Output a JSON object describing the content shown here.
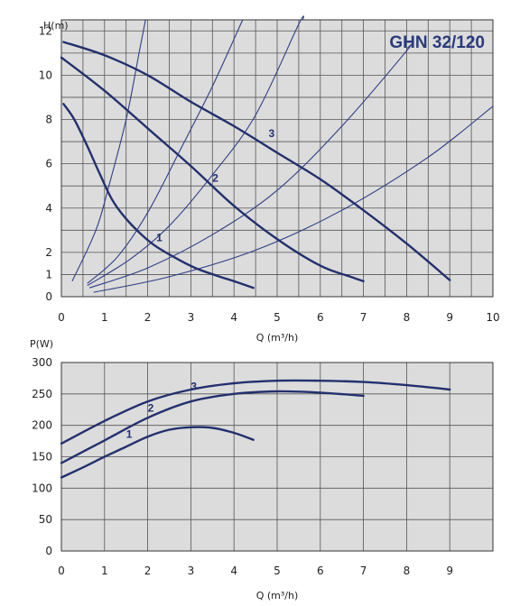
{
  "colors": {
    "plot_bg": "#dcdcdc",
    "grid": "#555555",
    "pump_curve": "#23306e",
    "system_curve": "#2f3d86",
    "title": "#2a3a7c"
  },
  "chart_data": [
    {
      "type": "line",
      "title": "GHN 32/120",
      "xlabel": "Q (m³/h)",
      "ylabel": "H(m)",
      "xlim": [
        0,
        10
      ],
      "ylim": [
        0,
        12.5
      ],
      "x_ticks": [
        "0",
        "1",
        "2",
        "3",
        "4",
        "5",
        "6",
        "7",
        "8",
        "9",
        "10"
      ],
      "y_ticks": [
        "0",
        "1",
        "2",
        "4",
        "6",
        "8",
        "10",
        "12"
      ],
      "grid": true,
      "series": [
        {
          "name": "1",
          "points": [
            [
              0.05,
              8.7
            ],
            [
              0.3,
              8.0
            ],
            [
              0.6,
              6.8
            ],
            [
              0.9,
              5.5
            ],
            [
              1.2,
              4.3
            ],
            [
              1.6,
              3.3
            ],
            [
              2.1,
              2.4
            ],
            [
              2.6,
              1.8
            ],
            [
              3.1,
              1.3
            ],
            [
              3.6,
              0.95
            ],
            [
              4.0,
              0.7
            ],
            [
              4.45,
              0.4
            ]
          ]
        },
        {
          "name": "2",
          "points": [
            [
              0.0,
              10.8
            ],
            [
              1.0,
              9.3
            ],
            [
              2.0,
              7.6
            ],
            [
              3.0,
              5.9
            ],
            [
              4.0,
              4.1
            ],
            [
              5.0,
              2.6
            ],
            [
              6.0,
              1.4
            ],
            [
              6.7,
              0.9
            ],
            [
              7.0,
              0.7
            ]
          ]
        },
        {
          "name": "3",
          "points": [
            [
              0.05,
              11.5
            ],
            [
              1.0,
              10.9
            ],
            [
              2.0,
              10.0
            ],
            [
              3.0,
              8.8
            ],
            [
              4.0,
              7.7
            ],
            [
              5.0,
              6.5
            ],
            [
              6.0,
              5.3
            ],
            [
              7.0,
              3.9
            ],
            [
              8.0,
              2.4
            ],
            [
              9.0,
              0.75
            ]
          ]
        }
      ],
      "system_curves": [
        [
          [
            0.25,
            0.7
          ],
          [
            0.8,
            3.0
          ],
          [
            1.1,
            5.0
          ],
          [
            1.5,
            8.0
          ],
          [
            1.8,
            11.0
          ],
          [
            1.95,
            12.5
          ]
        ],
        [
          [
            0.6,
            0.6
          ],
          [
            1.3,
            1.8
          ],
          [
            2.0,
            3.8
          ],
          [
            2.8,
            6.8
          ],
          [
            3.5,
            9.5
          ],
          [
            4.2,
            12.5
          ]
        ],
        [
          [
            0.6,
            0.5
          ],
          [
            1.6,
            1.7
          ],
          [
            2.5,
            3.2
          ],
          [
            3.5,
            5.5
          ],
          [
            4.5,
            8.2
          ],
          [
            5.5,
            12.3
          ],
          [
            5.6,
            12.5
          ]
        ],
        [
          [
            0.65,
            0.4
          ],
          [
            2.0,
            1.3
          ],
          [
            3.5,
            2.8
          ],
          [
            5.0,
            4.8
          ],
          [
            6.5,
            7.7
          ],
          [
            8.0,
            11.1
          ],
          [
            8.0,
            11.2
          ]
        ],
        [
          [
            0.75,
            0.2
          ],
          [
            2.5,
            0.9
          ],
          [
            4.5,
            2.1
          ],
          [
            6.5,
            3.9
          ],
          [
            8.5,
            6.3
          ],
          [
            10.0,
            8.6
          ]
        ]
      ]
    },
    {
      "type": "line",
      "xlabel": "Q (m³/h)",
      "ylabel": "P(W)",
      "xlim": [
        0,
        10
      ],
      "ylim": [
        0,
        300
      ],
      "x_ticks": [
        "0",
        "1",
        "2",
        "3",
        "4",
        "5",
        "6",
        "7",
        "8",
        "9"
      ],
      "y_ticks": [
        "0",
        "50",
        "100",
        "150",
        "200",
        "250",
        "300"
      ],
      "grid": true,
      "series": [
        {
          "name": "1",
          "points": [
            [
              0,
              117
            ],
            [
              0.5,
              133
            ],
            [
              1,
              150
            ],
            [
              1.5,
              166
            ],
            [
              2,
              182
            ],
            [
              2.5,
              193
            ],
            [
              3,
              197
            ],
            [
              3.5,
              196
            ],
            [
              4,
              188
            ],
            [
              4.45,
              177
            ]
          ]
        },
        {
          "name": "2",
          "points": [
            [
              0,
              140
            ],
            [
              1,
              176
            ],
            [
              2,
              212
            ],
            [
              3,
              238
            ],
            [
              4,
              250
            ],
            [
              5,
              254
            ],
            [
              6,
              252
            ],
            [
              7,
              247
            ]
          ]
        },
        {
          "name": "3",
          "points": [
            [
              0,
              171
            ],
            [
              1,
              207
            ],
            [
              2,
              238
            ],
            [
              3,
              257
            ],
            [
              4,
              267
            ],
            [
              5,
              271
            ],
            [
              6,
              271
            ],
            [
              7,
              269
            ],
            [
              8,
              264
            ],
            [
              9,
              257
            ]
          ]
        }
      ]
    }
  ]
}
